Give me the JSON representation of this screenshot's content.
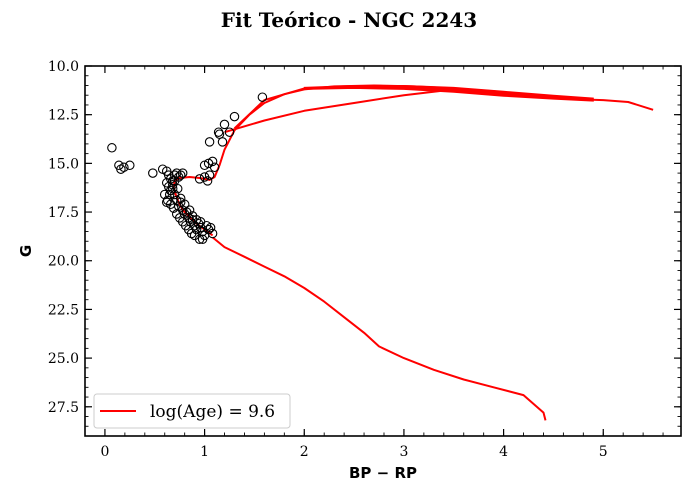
{
  "chart_data": {
    "type": "scatter",
    "title": "Fit Teórico - NGC 2243",
    "xlabel": "BP − RP",
    "ylabel": "G",
    "xlim": [
      -0.2,
      5.78
    ],
    "ylim": [
      29.0,
      10.0
    ],
    "y_inverted": true,
    "x_ticks": [
      "0",
      "1",
      "2",
      "3",
      "4",
      "5"
    ],
    "x_tick_values": [
      0,
      1,
      2,
      3,
      4,
      5
    ],
    "y_ticks": [
      "10.0",
      "12.5",
      "15.0",
      "17.5",
      "20.0",
      "22.5",
      "25.0",
      "27.5"
    ],
    "y_tick_values": [
      10.0,
      12.5,
      15.0,
      17.5,
      20.0,
      22.5,
      25.0,
      27.5
    ],
    "grid": false,
    "legend_position": "lower-left",
    "colors": {
      "isochrone": "#ff0000",
      "stars": "#000000"
    },
    "series": [
      {
        "kind": "scatter",
        "marker": "open-circle",
        "points": [
          [
            0.07,
            14.2
          ],
          [
            0.14,
            15.1
          ],
          [
            0.16,
            15.3
          ],
          [
            0.19,
            15.2
          ],
          [
            0.25,
            15.1
          ],
          [
            0.48,
            15.5
          ],
          [
            0.58,
            15.3
          ],
          [
            0.62,
            15.4
          ],
          [
            0.64,
            15.6
          ],
          [
            0.66,
            15.8
          ],
          [
            0.68,
            15.9
          ],
          [
            0.7,
            15.6
          ],
          [
            0.72,
            15.5
          ],
          [
            0.74,
            15.7
          ],
          [
            0.76,
            15.6
          ],
          [
            0.78,
            15.5
          ],
          [
            0.62,
            16.0
          ],
          [
            0.64,
            16.2
          ],
          [
            0.66,
            16.4
          ],
          [
            0.68,
            16.3
          ],
          [
            0.7,
            16.6
          ],
          [
            0.72,
            16.9
          ],
          [
            0.74,
            17.2
          ],
          [
            0.76,
            17.0
          ],
          [
            0.78,
            17.4
          ],
          [
            0.8,
            17.6
          ],
          [
            0.82,
            17.5
          ],
          [
            0.84,
            17.8
          ],
          [
            0.86,
            18.0
          ],
          [
            0.88,
            17.9
          ],
          [
            0.9,
            18.2
          ],
          [
            0.92,
            18.4
          ],
          [
            0.94,
            18.1
          ],
          [
            0.96,
            18.3
          ],
          [
            0.98,
            18.5
          ],
          [
            1.0,
            18.7
          ],
          [
            1.02,
            18.2
          ],
          [
            1.04,
            18.4
          ],
          [
            1.06,
            18.3
          ],
          [
            1.08,
            18.6
          ],
          [
            0.6,
            16.6
          ],
          [
            0.63,
            16.9
          ],
          [
            0.66,
            17.1
          ],
          [
            0.69,
            17.3
          ],
          [
            0.72,
            17.6
          ],
          [
            0.75,
            17.8
          ],
          [
            0.78,
            18.0
          ],
          [
            0.81,
            18.2
          ],
          [
            0.84,
            18.4
          ],
          [
            0.87,
            18.6
          ],
          [
            0.9,
            18.7
          ],
          [
            0.95,
            18.9
          ],
          [
            0.98,
            18.9
          ],
          [
            0.62,
            17.0
          ],
          [
            0.65,
            16.6
          ],
          [
            0.68,
            16.1
          ],
          [
            0.7,
            15.9
          ],
          [
            0.73,
            16.3
          ],
          [
            0.76,
            16.8
          ],
          [
            0.8,
            17.1
          ],
          [
            0.85,
            17.4
          ],
          [
            0.88,
            17.7
          ],
          [
            0.92,
            17.9
          ],
          [
            0.96,
            18.0
          ],
          [
            0.95,
            15.8
          ],
          [
            1.0,
            15.7
          ],
          [
            1.03,
            15.9
          ],
          [
            1.05,
            15.6
          ],
          [
            1.0,
            15.1
          ],
          [
            1.04,
            15.0
          ],
          [
            1.08,
            14.9
          ],
          [
            1.1,
            15.2
          ],
          [
            1.05,
            13.9
          ],
          [
            1.14,
            13.4
          ],
          [
            1.15,
            13.5
          ],
          [
            1.18,
            13.9
          ],
          [
            1.2,
            13.0
          ],
          [
            1.25,
            13.4
          ],
          [
            1.3,
            12.6
          ],
          [
            1.58,
            11.6
          ]
        ]
      },
      {
        "name": "log(Age) = 9.6",
        "kind": "line",
        "paths": [
          [
            [
              1.08,
              18.7
            ],
            [
              1.0,
              18.4
            ],
            [
              0.92,
              18.1
            ],
            [
              0.84,
              17.7
            ],
            [
              0.78,
              17.4
            ],
            [
              0.74,
              17.0
            ],
            [
              0.71,
              16.6
            ],
            [
              0.69,
              16.2
            ],
            [
              0.7,
              15.9
            ],
            [
              0.75,
              15.75
            ],
            [
              0.85,
              15.7
            ],
            [
              0.95,
              15.75
            ],
            [
              1.05,
              15.85
            ],
            [
              1.1,
              15.7
            ],
            [
              1.15,
              15.1
            ],
            [
              1.2,
              14.3
            ],
            [
              1.3,
              13.3
            ],
            [
              1.45,
              12.5
            ],
            [
              1.6,
              11.9
            ],
            [
              1.8,
              11.45
            ],
            [
              2.0,
              11.2
            ],
            [
              2.3,
              11.05
            ],
            [
              2.7,
              11.0
            ],
            [
              3.1,
              11.05
            ],
            [
              3.5,
              11.15
            ],
            [
              3.9,
              11.3
            ],
            [
              4.3,
              11.5
            ],
            [
              4.7,
              11.7
            ],
            [
              5.0,
              11.75
            ],
            [
              5.25,
              11.85
            ],
            [
              5.5,
              12.25
            ]
          ],
          [
            [
              1.08,
              18.8
            ],
            [
              1.2,
              19.3
            ],
            [
              1.4,
              19.8
            ],
            [
              1.6,
              20.3
            ],
            [
              1.8,
              20.8
            ],
            [
              2.0,
              21.4
            ],
            [
              2.2,
              22.1
            ],
            [
              2.4,
              22.9
            ],
            [
              2.6,
              23.7
            ],
            [
              2.75,
              24.4
            ],
            [
              3.0,
              25.0
            ],
            [
              3.3,
              25.6
            ],
            [
              3.6,
              26.1
            ],
            [
              3.9,
              26.5
            ],
            [
              4.2,
              26.9
            ],
            [
              4.4,
              27.8
            ],
            [
              4.42,
              28.2
            ]
          ],
          [
            [
              1.2,
              13.4
            ],
            [
              1.6,
              12.8
            ],
            [
              2.0,
              12.3
            ],
            [
              2.5,
              11.9
            ],
            [
              3.0,
              11.5
            ],
            [
              3.5,
              11.2
            ]
          ],
          [
            [
              1.3,
              13.2
            ],
            [
              1.6,
              11.75
            ],
            [
              2.0,
              11.15
            ]
          ]
        ],
        "band": {
          "top": [
            [
              2.0,
              11.1
            ],
            [
              2.5,
              11.0
            ],
            [
              3.0,
              11.0
            ],
            [
              3.5,
              11.1
            ],
            [
              4.0,
              11.3
            ],
            [
              4.5,
              11.5
            ],
            [
              4.9,
              11.65
            ]
          ],
          "bottom": [
            [
              4.9,
              11.8
            ],
            [
              4.5,
              11.7
            ],
            [
              4.0,
              11.55
            ],
            [
              3.5,
              11.35
            ],
            [
              3.0,
              11.2
            ],
            [
              2.5,
              11.15
            ],
            [
              2.0,
              11.2
            ]
          ]
        }
      }
    ]
  }
}
